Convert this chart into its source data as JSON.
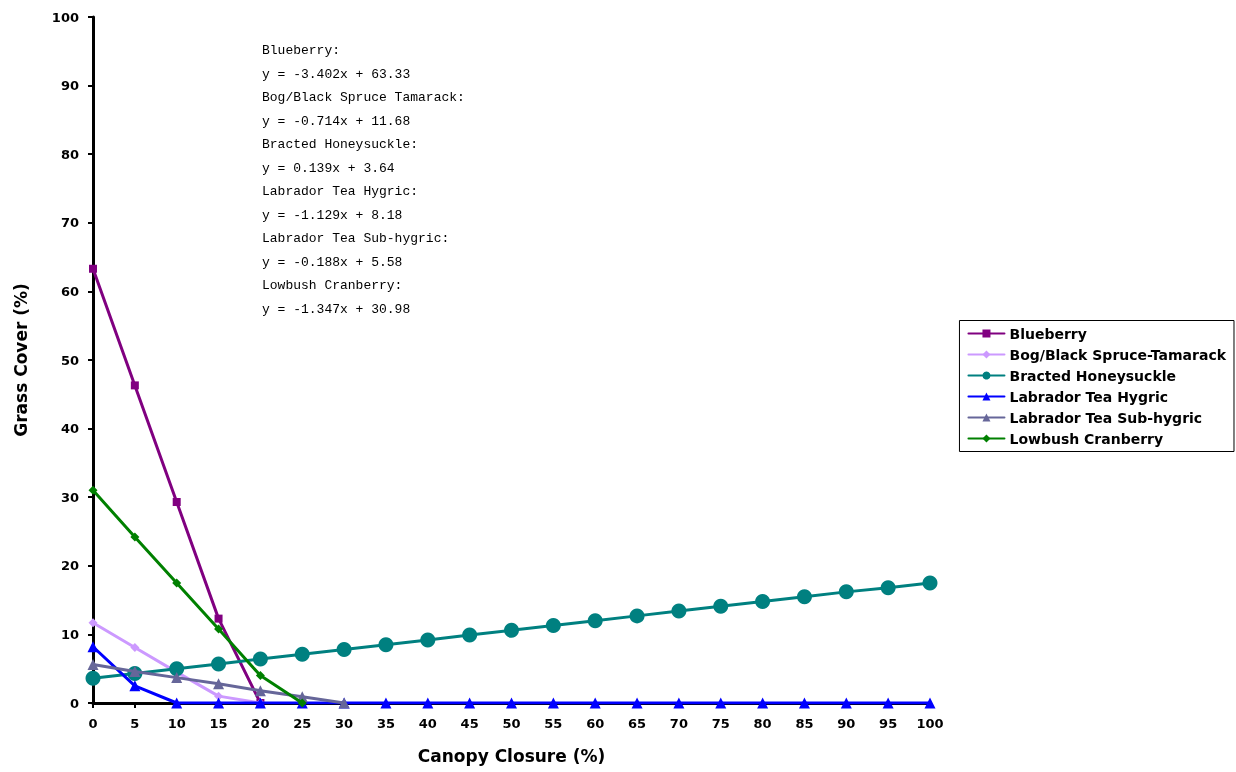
{
  "chart_data": {
    "type": "line",
    "xlabel": "Canopy Closure (%)",
    "ylabel": "Grass Cover (%)",
    "x": [
      0,
      5,
      10,
      15,
      20,
      25,
      30,
      35,
      40,
      45,
      50,
      55,
      60,
      65,
      70,
      75,
      80,
      85,
      90,
      95,
      100
    ],
    "xlim": [
      0,
      100
    ],
    "xticks": [
      0,
      5,
      10,
      15,
      20,
      25,
      30,
      35,
      40,
      45,
      50,
      55,
      60,
      65,
      70,
      75,
      80,
      85,
      90,
      95,
      100
    ],
    "ylim": [
      0,
      100
    ],
    "yticks": [
      0,
      10,
      20,
      30,
      40,
      50,
      60,
      70,
      80,
      90,
      100
    ],
    "grid": false,
    "legend": "right",
    "line_style": "solid",
    "annotations": [
      "Blueberry:",
      "y = -3.402x + 63.33",
      "Bog/Black Spruce Tamarack:",
      "y = -0.714x + 11.68",
      "Bracted Honeysuckle:",
      "y = 0.139x + 3.64",
      "Labrador Tea Hygric:",
      "y = -1.129x + 8.18",
      "Labrador Tea Sub-hygric:",
      "y = -0.188x + 5.58",
      "Lowbush Cranberry:",
      "y = -1.347x + 30.98"
    ],
    "series": [
      {
        "name": "Blueberry",
        "color": "#800080",
        "marker": "square",
        "values": [
          63.3,
          46.3,
          29.3,
          12.3,
          0,
          null,
          null,
          null,
          null,
          null,
          null,
          null,
          null,
          null,
          null,
          null,
          null,
          null,
          null,
          null,
          null
        ]
      },
      {
        "name": "Bog/Black Spruce-Tamarack",
        "color": "#cc99ff",
        "marker": "diamond",
        "values": [
          11.7,
          8.1,
          4.5,
          1.0,
          0,
          null,
          null,
          null,
          null,
          null,
          null,
          null,
          null,
          null,
          null,
          null,
          null,
          null,
          null,
          null,
          null
        ]
      },
      {
        "name": "Bracted Honeysuckle",
        "color": "#008080",
        "marker": "circle",
        "values": [
          3.6,
          4.3,
          5.0,
          5.7,
          6.4,
          7.1,
          7.8,
          8.5,
          9.2,
          9.9,
          10.6,
          11.3,
          12.0,
          12.7,
          13.4,
          14.1,
          14.8,
          15.5,
          16.2,
          16.8,
          17.5
        ]
      },
      {
        "name": "Labrador Tea Hygric",
        "color": "#0000ff",
        "marker": "triangle",
        "values": [
          8.2,
          2.5,
          0,
          0,
          0,
          0,
          0,
          0,
          0,
          0,
          0,
          0,
          0,
          0,
          0,
          0,
          0,
          0,
          0,
          0,
          0
        ]
      },
      {
        "name": "Labrador Tea Sub-hygric",
        "color": "#666699",
        "marker": "triangle",
        "values": [
          5.6,
          4.6,
          3.7,
          2.8,
          1.8,
          0.9,
          0,
          null,
          null,
          null,
          null,
          null,
          null,
          null,
          null,
          null,
          null,
          null,
          null,
          null,
          null
        ]
      },
      {
        "name": "Lowbush Cranberry",
        "color": "#008000",
        "marker": "diamond",
        "values": [
          31.0,
          24.2,
          17.5,
          10.8,
          4.0,
          0,
          null,
          null,
          null,
          null,
          null,
          null,
          null,
          null,
          null,
          null,
          null,
          null,
          null,
          null,
          null
        ]
      }
    ]
  }
}
